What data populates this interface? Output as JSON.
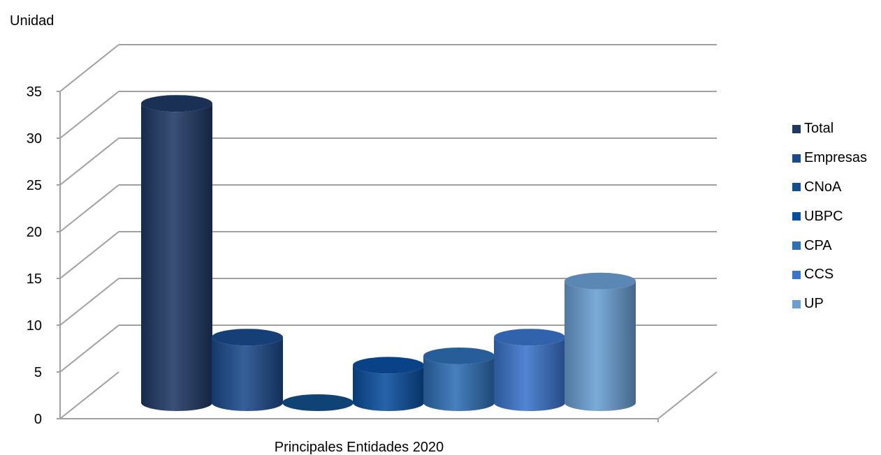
{
  "chart_data": {
    "type": "bar",
    "style": "3d-cylinder",
    "title": "",
    "ylabel": "Unidad",
    "xlabel": "Principales Entidades 2020",
    "ylim": [
      0,
      35
    ],
    "y_ticks": [
      0,
      5,
      10,
      15,
      20,
      25,
      30,
      35
    ],
    "grid": true,
    "legend_position": "right",
    "categories": [
      "Principales Entidades 2020"
    ],
    "series": [
      {
        "name": "Total",
        "values": [
          32
        ],
        "color": "#1F3864"
      },
      {
        "name": "Empresas",
        "values": [
          7
        ],
        "color": "#1B4A8C"
      },
      {
        "name": "CNoA",
        "values": [
          0
        ],
        "color": "#134F8A"
      },
      {
        "name": "UBPC",
        "values": [
          4
        ],
        "color": "#0A4E9E"
      },
      {
        "name": "CPA",
        "values": [
          5
        ],
        "color": "#2E6FB5"
      },
      {
        "name": "CCS",
        "values": [
          7
        ],
        "color": "#3A74CC"
      },
      {
        "name": "UP",
        "values": [
          13
        ],
        "color": "#6A9FD4"
      }
    ]
  }
}
